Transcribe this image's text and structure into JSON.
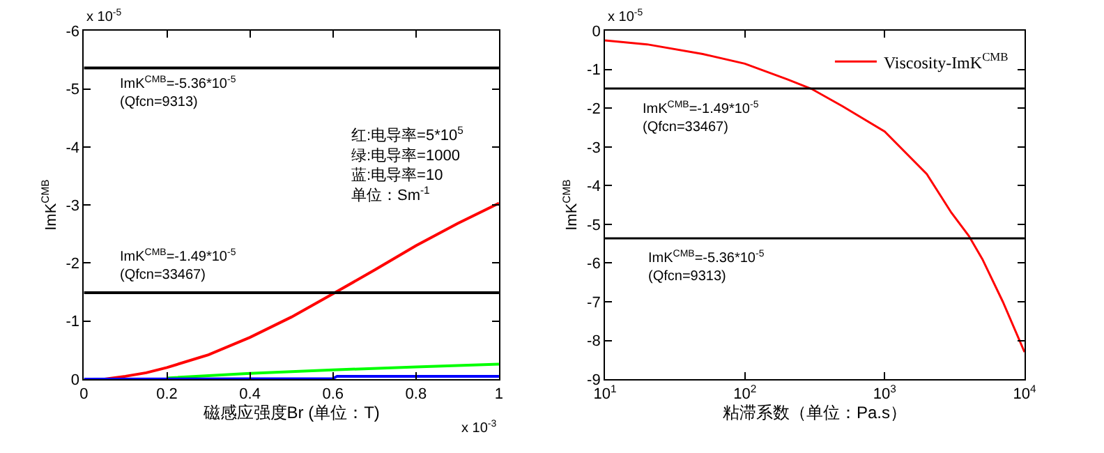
{
  "chart_data": [
    {
      "type": "line",
      "xlabel": "磁感应强度Br (单位：T)",
      "ylabel": "ImK$^{CMB}$",
      "series": [
        {
          "color": "#ff0000",
          "x": [
            0.05,
            0.1,
            0.15,
            0.2,
            0.3,
            0.4,
            0.5,
            0.6,
            0.7,
            0.8,
            0.9,
            1.0
          ],
          "values": [
            0,
            -0.05,
            -0.11,
            -0.2,
            -0.42,
            -0.72,
            -1.07,
            -1.47,
            -1.88,
            -2.3,
            -2.68,
            -3.03
          ]
        },
        {
          "color": "#00ff00",
          "x": [
            0.2,
            0.4,
            0.6,
            0.8,
            1.0
          ],
          "values": [
            -0.02,
            -0.1,
            -0.16,
            -0.21,
            -0.26
          ]
        },
        {
          "color": "#0000ff",
          "x": [
            0,
            0.6,
            0.61,
            1.0
          ],
          "values": [
            0,
            -0.01,
            -0.05,
            -0.05
          ]
        }
      ],
      "xlim": [
        0,
        1
      ],
      "xticks": [
        0,
        0.2,
        0.4,
        0.6,
        0.8,
        1
      ],
      "ylim": [
        0,
        -6
      ],
      "yticks": [
        0,
        -1,
        -2,
        -3,
        -4,
        -5,
        -6
      ],
      "ref_lines": [
        {
          "axis": "y",
          "value": -5.36,
          "color": "#000000"
        },
        {
          "axis": "y",
          "value": -1.49,
          "color": "#000000"
        }
      ],
      "annotations": [
        "x 10$^{-5}$",
        "x 10$^{-3}$",
        "红:电导率=5*10$^{5}$\n绿:电导率=1000\n蓝:电导率=10\n单位：Sm$^{-1}$",
        "ImK$^{CMB}$=-5.36*10$^{-5}$\n(Qfcn=9313)",
        "ImK$^{CMB}$=-1.49*10$^{-5}$\n(Qfcn=33467)"
      ],
      "legend": false,
      "line_style": "solid",
      "marker": "none"
    },
    {
      "type": "line",
      "xlabel": "粘滞系数（单位：Pa.s）",
      "ylabel": "ImK$^{CMB}$",
      "log": "x",
      "x": [
        10,
        20,
        50,
        100,
        200,
        300,
        500,
        1000,
        2000,
        3000,
        4000,
        5000,
        7000,
        10000
      ],
      "series": [
        {
          "name": "Viscosity-ImK$^{CMB}$",
          "color": "#ff0000",
          "values": [
            -0.25,
            -0.35,
            -0.6,
            -0.85,
            -1.25,
            -1.5,
            -1.95,
            -2.6,
            -3.7,
            -4.7,
            -5.3,
            -5.9,
            -7.0,
            -8.3
          ]
        }
      ],
      "xlim": [
        10,
        10000
      ],
      "xticks": [
        {
          "value": 10,
          "label": "10$^{1}$"
        },
        {
          "value": 100,
          "label": "10$^{2}$"
        },
        {
          "value": 1000,
          "label": "10$^{3}$"
        },
        {
          "value": 10000,
          "label": "10$^{4}$"
        }
      ],
      "ylim": [
        -9,
        0
      ],
      "yticks": [
        0,
        -1,
        -2,
        -3,
        -4,
        -5,
        -6,
        -7,
        -8,
        -9
      ],
      "ref_lines": [
        {
          "axis": "y",
          "value": -1.49,
          "color": "#000000"
        },
        {
          "axis": "y",
          "value": -5.36,
          "color": "#000000"
        }
      ],
      "annotations": [
        "x 10$^{-5}$",
        "ImK$^{CMB}$=-1.49*10$^{-5}$\n(Qfcn=33467)",
        "ImK$^{CMB}$=-5.36*10$^{-5}$\n(Qfcn=9313)"
      ],
      "legend": "top right",
      "line_style": "solid",
      "marker": "none"
    }
  ]
}
